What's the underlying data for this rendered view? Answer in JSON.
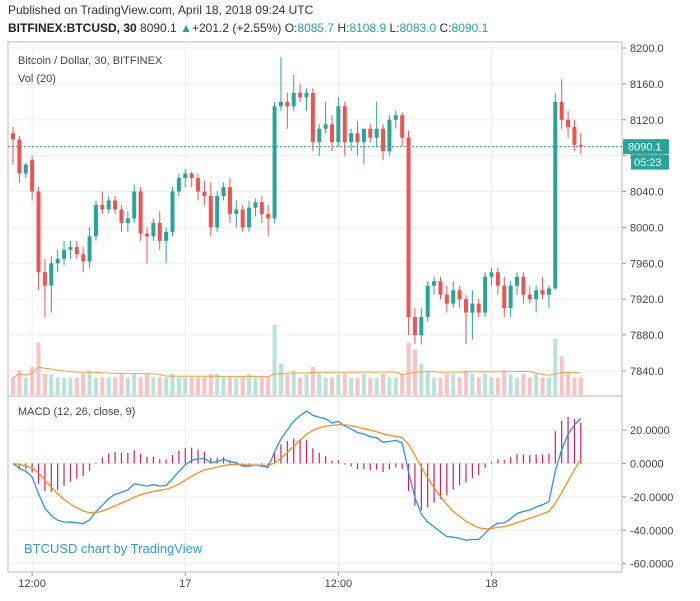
{
  "header": {
    "published": "Published on TradingView.com, April 18, 2018 09:24 UTC",
    "symbol": "BITFINEX:BTCUSD, 30",
    "last": "8090.1",
    "change_arrow": "▲",
    "change": "+201.2 (+2.55%)",
    "o_label": "O:",
    "o": "8085.7",
    "h_label": "H:",
    "h": "8108.9",
    "l_label": "L:",
    "l": "8083.0",
    "c_label": "C:",
    "c": "8090.1"
  },
  "colors": {
    "up": "#26a69a",
    "down": "#ef5350",
    "macd": "#2196f3",
    "signal": "#ff8c1a",
    "hist": "#d81b60",
    "price_line": "#26a69a",
    "vol_ma": "#ff9a3c"
  },
  "chart_data": {
    "type": "candlestick",
    "title": "Bitcoin / Dollar, 30, BITFINEX",
    "volume_label": "Vol (20)",
    "macd_label": "MACD (12, 26, close, 9)",
    "watermark": "BTCUSD chart by TradingView",
    "last_price": "8090.1",
    "countdown": "05:23",
    "price_axis": {
      "min": 7812,
      "max": 8200,
      "ticks": [
        "8200.0",
        "8160.0",
        "8120.0",
        "8080.0",
        "8040.0",
        "8000.0",
        "7960.0",
        "7920.0",
        "7880.0",
        "7840.0"
      ]
    },
    "macd_axis": {
      "min": -65,
      "max": 38,
      "ticks": [
        "20.0000",
        "0.0000",
        "-20.0000",
        "-40.0000",
        "-60.0000"
      ]
    },
    "x_labels": [
      {
        "label": "12:00",
        "i": 3
      },
      {
        "label": "17",
        "i": 27
      },
      {
        "label": "12:00",
        "i": 51
      },
      {
        "label": "18",
        "i": 75
      }
    ],
    "ohlc": [
      [
        8105,
        8112,
        8070,
        8098
      ],
      [
        8098,
        8102,
        8050,
        8060
      ],
      [
        8060,
        8072,
        8055,
        8070
      ],
      [
        8075,
        8080,
        8030,
        8040
      ],
      [
        8040,
        8045,
        7930,
        7950
      ],
      [
        7950,
        7965,
        7900,
        7935
      ],
      [
        7935,
        7968,
        7905,
        7960
      ],
      [
        7960,
        7975,
        7950,
        7965
      ],
      [
        7965,
        7985,
        7958,
        7975
      ],
      [
        7975,
        7985,
        7965,
        7978
      ],
      [
        7978,
        7985,
        7965,
        7970
      ],
      [
        7970,
        7978,
        7950,
        7962
      ],
      [
        7962,
        8000,
        7955,
        7990
      ],
      [
        7990,
        8030,
        7985,
        8025
      ],
      [
        8025,
        8040,
        8015,
        8020
      ],
      [
        8020,
        8035,
        8015,
        8030
      ],
      [
        8030,
        8035,
        8015,
        8020
      ],
      [
        8020,
        8025,
        7995,
        8005
      ],
      [
        8005,
        8018,
        7995,
        8010
      ],
      [
        8010,
        8048,
        8005,
        8040
      ],
      [
        8040,
        8045,
        7985,
        7993
      ],
      [
        7993,
        8000,
        7960,
        7990
      ],
      [
        7990,
        8010,
        7985,
        8005
      ],
      [
        8005,
        8018,
        7975,
        7985
      ],
      [
        7985,
        8000,
        7960,
        7995
      ],
      [
        7995,
        8045,
        7990,
        8040
      ],
      [
        8040,
        8060,
        8035,
        8055
      ],
      [
        8055,
        8065,
        8045,
        8060
      ],
      [
        8060,
        8062,
        8045,
        8055
      ],
      [
        8055,
        8060,
        8030,
        8040
      ],
      [
        8040,
        8052,
        8025,
        8035
      ],
      [
        8035,
        8050,
        7990,
        8000
      ],
      [
        8000,
        8040,
        7995,
        8035
      ],
      [
        8035,
        8050,
        8030,
        8045
      ],
      [
        8045,
        8055,
        8005,
        8015
      ],
      [
        8015,
        8030,
        8000,
        8020
      ],
      [
        8020,
        8025,
        7995,
        8000
      ],
      [
        8000,
        8030,
        7995,
        8022
      ],
      [
        8022,
        8032,
        8012,
        8028
      ],
      [
        8028,
        8035,
        8005,
        8015
      ],
      [
        8015,
        8025,
        7990,
        8010
      ],
      [
        8010,
        8140,
        8005,
        8135
      ],
      [
        8135,
        8190,
        8130,
        8140
      ],
      [
        8140,
        8150,
        8110,
        8135
      ],
      [
        8135,
        8170,
        8130,
        8150
      ],
      [
        8150,
        8160,
        8140,
        8145
      ],
      [
        8145,
        8155,
        8130,
        8150
      ],
      [
        8150,
        8155,
        8085,
        8095
      ],
      [
        8095,
        8115,
        8080,
        8110
      ],
      [
        8110,
        8140,
        8105,
        8115
      ],
      [
        8115,
        8125,
        8085,
        8095
      ],
      [
        8095,
        8145,
        8090,
        8135
      ],
      [
        8135,
        8140,
        8080,
        8095
      ],
      [
        8095,
        8110,
        8085,
        8105
      ],
      [
        8105,
        8118,
        8080,
        8095
      ],
      [
        8095,
        8110,
        8070,
        8110
      ],
      [
        8110,
        8115,
        8095,
        8100
      ],
      [
        8100,
        8140,
        8090,
        8110
      ],
      [
        8110,
        8115,
        8075,
        8085
      ],
      [
        8085,
        8125,
        8080,
        8120
      ],
      [
        8120,
        8130,
        8110,
        8125
      ],
      [
        8125,
        8128,
        8090,
        8100
      ],
      [
        8100,
        8108,
        7880,
        7900
      ],
      [
        7900,
        7910,
        7870,
        7880
      ],
      [
        7880,
        7910,
        7870,
        7900
      ],
      [
        7900,
        7940,
        7895,
        7935
      ],
      [
        7935,
        7945,
        7925,
        7940
      ],
      [
        7940,
        7945,
        7920,
        7925
      ],
      [
        7925,
        7935,
        7905,
        7915
      ],
      [
        7915,
        7940,
        7910,
        7930
      ],
      [
        7930,
        7935,
        7910,
        7920
      ],
      [
        7920,
        7925,
        7870,
        7905
      ],
      [
        7905,
        7930,
        7875,
        7915
      ],
      [
        7915,
        7920,
        7900,
        7905
      ],
      [
        7905,
        7950,
        7900,
        7945
      ],
      [
        7945,
        7955,
        7935,
        7950
      ],
      [
        7950,
        7955,
        7925,
        7935
      ],
      [
        7935,
        7945,
        7900,
        7910
      ],
      [
        7910,
        7940,
        7900,
        7935
      ],
      [
        7935,
        7950,
        7925,
        7945
      ],
      [
        7945,
        7950,
        7915,
        7925
      ],
      [
        7925,
        7935,
        7915,
        7920
      ],
      [
        7920,
        7935,
        7905,
        7930
      ],
      [
        7930,
        7945,
        7920,
        7925
      ],
      [
        7925,
        7935,
        7910,
        7932
      ],
      [
        7932,
        8150,
        7930,
        8140
      ],
      [
        8140,
        8165,
        8110,
        8120
      ],
      [
        8120,
        8130,
        8100,
        8112
      ],
      [
        8112,
        8120,
        8085,
        8092
      ],
      [
        8092,
        8105,
        8082,
        8090
      ]
    ],
    "volume": [
      5,
      7,
      5,
      8,
      15,
      6,
      6,
      5,
      5,
      5,
      5,
      6,
      7,
      5,
      5,
      5,
      5,
      6,
      5,
      6,
      5,
      6,
      5,
      5,
      5,
      6,
      5,
      5,
      5,
      5,
      5,
      6,
      6,
      5,
      5,
      5,
      5,
      6,
      5,
      5,
      5,
      20,
      9,
      6,
      7,
      5,
      6,
      8,
      6,
      5,
      5,
      6,
      6,
      5,
      5,
      6,
      5,
      5,
      6,
      5,
      5,
      6,
      15,
      13,
      9,
      7,
      5,
      5,
      6,
      6,
      5,
      7,
      6,
      5,
      6,
      5,
      5,
      7,
      6,
      5,
      6,
      5,
      6,
      5,
      5,
      16,
      11,
      6,
      5,
      5
    ]
  }
}
